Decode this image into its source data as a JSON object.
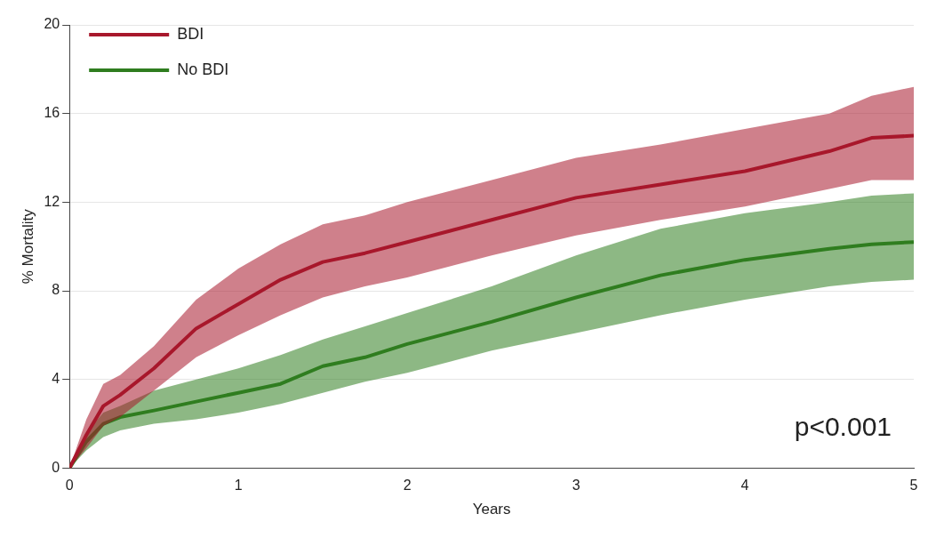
{
  "chart_data": {
    "type": "line",
    "xlabel": "Years",
    "ylabel": "% Mortality",
    "xlim": [
      0,
      5
    ],
    "xticks": [
      0,
      1,
      2,
      3,
      4,
      5
    ],
    "ylim": [
      0,
      20
    ],
    "yticks": [
      0,
      4,
      8,
      12,
      16,
      20
    ],
    "grid": "y",
    "legend": "top left",
    "annotations": [
      "p<0.001"
    ],
    "x": [
      0,
      0.1,
      0.2,
      0.3,
      0.5,
      0.75,
      1,
      1.25,
      1.5,
      1.75,
      2,
      2.5,
      3,
      3.5,
      4,
      4.5,
      4.75,
      5
    ],
    "series": [
      {
        "name": "BDI",
        "color": "#a8182c",
        "values": [
          0,
          1.5,
          2.8,
          3.3,
          4.5,
          6.3,
          7.4,
          8.5,
          9.3,
          9.7,
          10.2,
          11.2,
          12.2,
          12.8,
          13.4,
          14.3,
          14.9,
          15.0
        ],
        "lower": [
          0,
          0.9,
          1.9,
          2.3,
          3.5,
          5.0,
          6.0,
          6.9,
          7.7,
          8.2,
          8.6,
          9.6,
          10.5,
          11.2,
          11.8,
          12.6,
          13.0,
          13.0
        ],
        "upper": [
          0,
          2.2,
          3.8,
          4.2,
          5.5,
          7.6,
          9.0,
          10.1,
          11.0,
          11.4,
          12.0,
          13.0,
          14.0,
          14.6,
          15.3,
          16.0,
          16.8,
          17.2
        ]
      },
      {
        "name": "No BDI",
        "color": "#2f7d1f",
        "values": [
          0,
          1.2,
          2.0,
          2.3,
          2.6,
          3.0,
          3.4,
          3.8,
          4.6,
          5.0,
          5.6,
          6.6,
          7.7,
          8.7,
          9.4,
          9.9,
          10.1,
          10.2
        ],
        "lower": [
          0,
          0.8,
          1.4,
          1.7,
          2.0,
          2.2,
          2.5,
          2.9,
          3.4,
          3.9,
          4.3,
          5.3,
          6.1,
          6.9,
          7.6,
          8.2,
          8.4,
          8.5
        ],
        "upper": [
          0,
          1.6,
          2.5,
          2.8,
          3.5,
          4.0,
          4.5,
          5.1,
          5.8,
          6.4,
          7.0,
          8.2,
          9.6,
          10.8,
          11.5,
          12.0,
          12.3,
          12.4
        ]
      }
    ]
  }
}
